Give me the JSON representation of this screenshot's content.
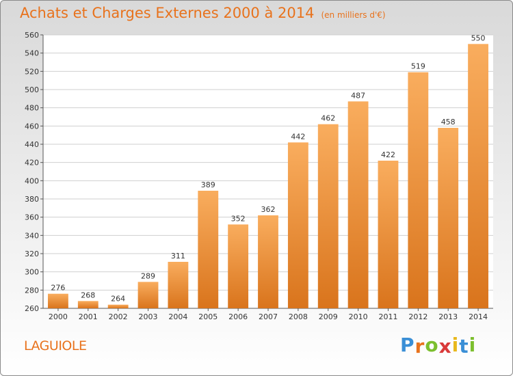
{
  "chart_data": {
    "type": "bar",
    "title": "Achats et Charges Externes 2000 à 2014",
    "subtitle": "(en milliers d'€)",
    "categories": [
      "2000",
      "2001",
      "2002",
      "2003",
      "2004",
      "2005",
      "2006",
      "2007",
      "2008",
      "2009",
      "2010",
      "2011",
      "2012",
      "2013",
      "2014"
    ],
    "values": [
      276,
      268,
      264,
      289,
      311,
      389,
      352,
      362,
      442,
      462,
      487,
      422,
      519,
      458,
      550
    ],
    "ylim": [
      260,
      560
    ],
    "yticks": [
      260,
      280,
      300,
      320,
      340,
      360,
      380,
      400,
      420,
      440,
      460,
      480,
      500,
      520,
      540,
      560
    ],
    "grid": true,
    "bar_color_top": "#f9ad5e",
    "bar_color_bottom": "#d9741c",
    "xlabel": "",
    "ylabel": ""
  },
  "location": "LAGUIOLE",
  "logo": {
    "letters": [
      "P",
      "r",
      "o",
      "x",
      "i",
      "t",
      "i"
    ],
    "colors": [
      "#3a8fd6",
      "#e8721c",
      "#7cbf2e",
      "#d93a3a",
      "#e8b81c",
      "#3a8fd6",
      "#7cbf2e"
    ]
  },
  "colors": {
    "accent": "#e8721c"
  }
}
